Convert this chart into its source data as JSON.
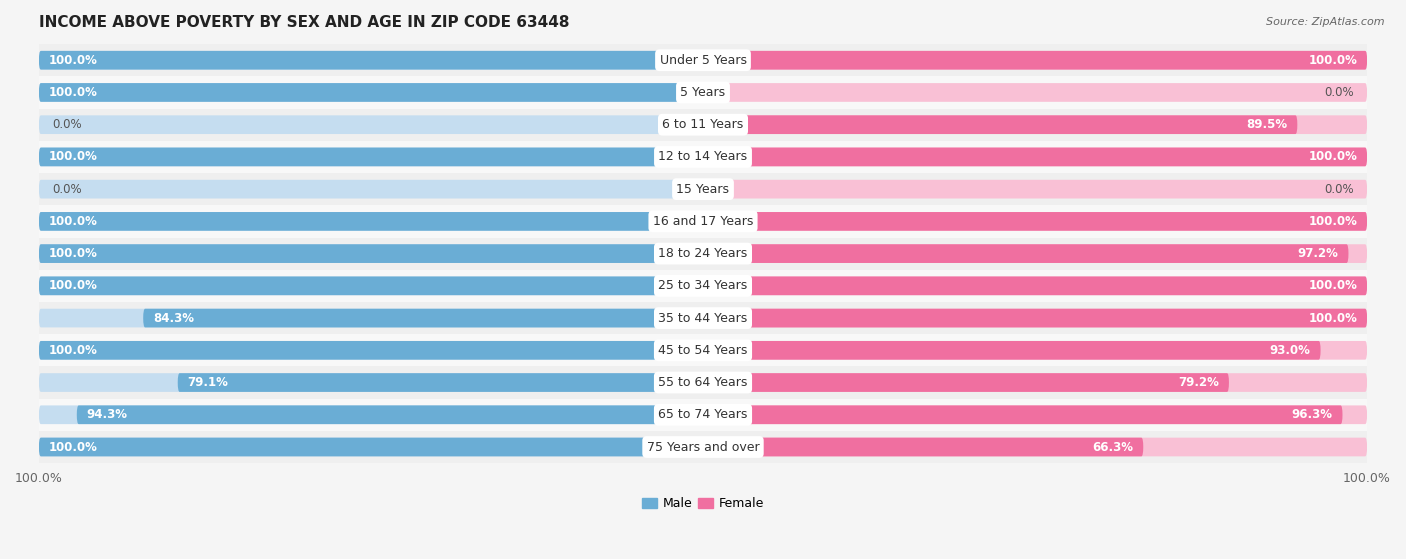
{
  "title": "INCOME ABOVE POVERTY BY SEX AND AGE IN ZIP CODE 63448",
  "source": "Source: ZipAtlas.com",
  "categories": [
    "Under 5 Years",
    "5 Years",
    "6 to 11 Years",
    "12 to 14 Years",
    "15 Years",
    "16 and 17 Years",
    "18 to 24 Years",
    "25 to 34 Years",
    "35 to 44 Years",
    "45 to 54 Years",
    "55 to 64 Years",
    "65 to 74 Years",
    "75 Years and over"
  ],
  "male_values": [
    100.0,
    100.0,
    0.0,
    100.0,
    0.0,
    100.0,
    100.0,
    100.0,
    84.3,
    100.0,
    79.1,
    94.3,
    100.0
  ],
  "female_values": [
    100.0,
    0.0,
    89.5,
    100.0,
    0.0,
    100.0,
    97.2,
    100.0,
    100.0,
    93.0,
    79.2,
    96.3,
    66.3
  ],
  "male_color": "#6aadd5",
  "female_color": "#f06fa0",
  "male_color_light": "#c5ddf0",
  "female_color_light": "#f9c0d5",
  "row_bg_odd": "#efefef",
  "row_bg_even": "#f8f8f8",
  "background_color": "#f5f5f5",
  "title_fontsize": 11,
  "label_fontsize": 8.5,
  "tick_fontsize": 9,
  "xlim": 100.0
}
